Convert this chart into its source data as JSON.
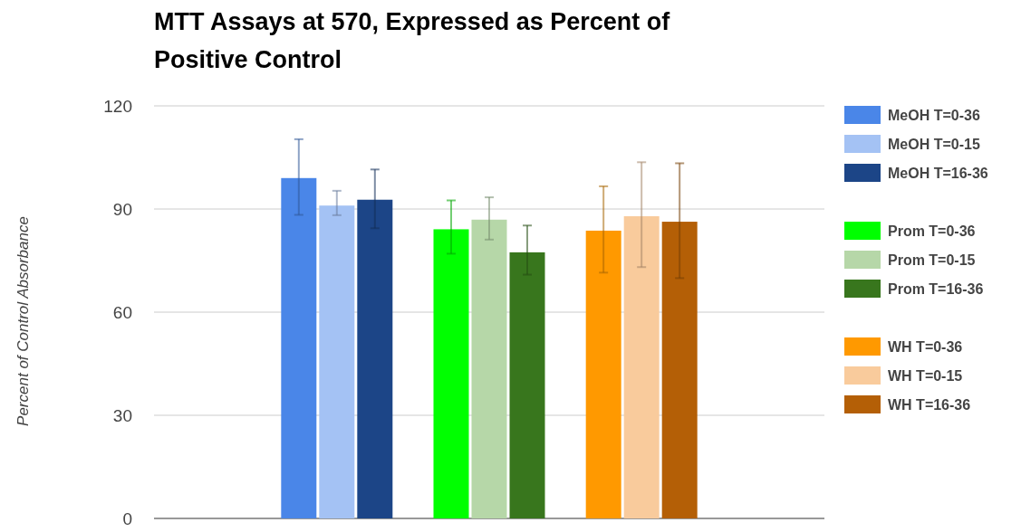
{
  "chart_data": {
    "type": "bar",
    "title": "MTT Assays at 570, Expressed as Percent of Positive Control",
    "ylabel": "Percent of Control Absorbance",
    "categories": [
      null,
      null,
      null
    ],
    "series": [
      {
        "name": "MeOH T=0-36",
        "color": "#4a86e8",
        "values": [
          99,
          null,
          null
        ],
        "errors": [
          [
            88.3,
            110.3
          ],
          null,
          null
        ]
      },
      {
        "name": "MeOH T=0-15",
        "color": "#a4c2f4",
        "values": [
          91,
          null,
          null
        ],
        "errors": [
          [
            88.2,
            95.3
          ],
          null,
          null
        ]
      },
      {
        "name": "MeOH T=16-36",
        "color": "#1c4587",
        "values": [
          92.7,
          null,
          null
        ],
        "errors": [
          [
            84.4,
            101.5
          ],
          null,
          null
        ]
      },
      {
        "name": "Prom T=0-36",
        "color": "#00ff00",
        "values": [
          null,
          84.1,
          null
        ],
        "errors": [
          null,
          [
            77,
            92.5
          ],
          null
        ]
      },
      {
        "name": "Prom T=0-15",
        "color": "#b6d7a8",
        "values": [
          null,
          86.9,
          null
        ],
        "errors": [
          null,
          [
            81.1,
            93.4
          ],
          null
        ]
      },
      {
        "name": "Prom T=16-36",
        "color": "#38761d",
        "values": [
          null,
          77.4,
          null
        ],
        "errors": [
          null,
          [
            70.9,
            85.2
          ],
          null
        ]
      },
      {
        "name": "WH T=0-36",
        "color": "#ff9900",
        "values": [
          null,
          null,
          83.7
        ],
        "errors": [
          null,
          null,
          [
            71.5,
            96.6
          ]
        ]
      },
      {
        "name": "WH T=0-15",
        "color": "#f9cb9c",
        "values": [
          null,
          null,
          87.9
        ],
        "errors": [
          null,
          null,
          [
            73.1,
            103.6
          ]
        ]
      },
      {
        "name": "WH T=16-36",
        "color": "#b45f06",
        "values": [
          null,
          null,
          86.3
        ],
        "errors": [
          null,
          null,
          [
            69.9,
            103.3
          ]
        ]
      }
    ],
    "ylim": [
      0,
      120
    ],
    "yticks": [
      0,
      30,
      60,
      90,
      120
    ],
    "grid": "y",
    "legend": "right"
  }
}
